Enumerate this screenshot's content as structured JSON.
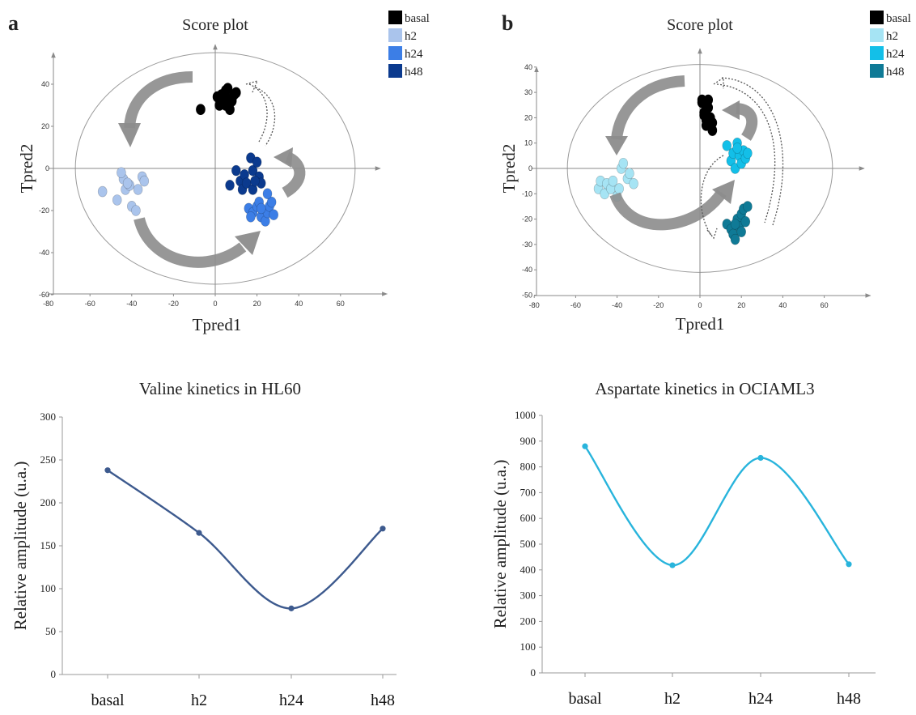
{
  "panel_labels": [
    "a",
    "b"
  ],
  "colors": {
    "basal": "#000000",
    "a_h2": "#aac4ec",
    "a_h24": "#3c7ee6",
    "a_h48": "#0b3a8e",
    "b_h2": "#a6e4f4",
    "b_h24": "#13bfe8",
    "b_h48": "#0f7a96",
    "line_a": "#3d5a8e",
    "line_b": "#28b4dc",
    "arrow": "#8c8c8c"
  },
  "chart_data": [
    {
      "type": "scatter",
      "panel": "a",
      "title": "Score plot",
      "xlabel": "Tpred1",
      "ylabel": "Tpred2",
      "xlim": [
        -80,
        80
      ],
      "ylim": [
        -60,
        55
      ],
      "xticks": [
        -80,
        -60,
        -40,
        -20,
        0,
        20,
        40,
        60
      ],
      "yticks": [
        -60,
        -40,
        -20,
        0,
        20,
        40
      ],
      "ellipse": {
        "cx": 0,
        "cy": 0,
        "rx": 67,
        "ry": 55
      },
      "legend": [
        "basal",
        "h2",
        "h24",
        "h48"
      ],
      "series": [
        {
          "name": "basal",
          "color": "#000000",
          "points": [
            [
              -7,
              28
            ],
            [
              2,
              30
            ],
            [
              3,
              35
            ],
            [
              5,
              37
            ],
            [
              6,
              33
            ],
            [
              7,
              28
            ],
            [
              8,
              32
            ],
            [
              9,
              35
            ],
            [
              4,
              32
            ],
            [
              1,
              34
            ],
            [
              10,
              36
            ],
            [
              6,
              38
            ],
            [
              3,
              31
            ],
            [
              5,
              30
            ]
          ]
        },
        {
          "name": "h2",
          "color": "#aac4ec",
          "points": [
            [
              -54,
              -11
            ],
            [
              -47,
              -15
            ],
            [
              -44,
              -5
            ],
            [
              -43,
              -10
            ],
            [
              -41,
              -8
            ],
            [
              -40,
              -18
            ],
            [
              -38,
              -20
            ],
            [
              -37,
              -10
            ],
            [
              -35,
              -4
            ],
            [
              -34,
              -6
            ],
            [
              -45,
              -2
            ],
            [
              -42,
              -7
            ]
          ]
        },
        {
          "name": "h24",
          "color": "#3c7ee6",
          "points": [
            [
              16,
              -19
            ],
            [
              18,
              -21
            ],
            [
              20,
              -18
            ],
            [
              21,
              -16
            ],
            [
              22,
              -23
            ],
            [
              24,
              -25
            ],
            [
              25,
              -21
            ],
            [
              26,
              -18
            ],
            [
              27,
              -16
            ],
            [
              28,
              -22
            ],
            [
              22,
              -19
            ],
            [
              17,
              -23
            ],
            [
              25,
              -12
            ]
          ]
        },
        {
          "name": "h48",
          "color": "#0b3a8e",
          "points": [
            [
              7,
              -8
            ],
            [
              10,
              -1
            ],
            [
              12,
              -6
            ],
            [
              13,
              -10
            ],
            [
              14,
              -3
            ],
            [
              15,
              -7
            ],
            [
              17,
              5
            ],
            [
              18,
              -1
            ],
            [
              18,
              -10
            ],
            [
              20,
              3
            ],
            [
              21,
              -4
            ],
            [
              22,
              -7
            ],
            [
              19,
              -6
            ]
          ]
        }
      ]
    },
    {
      "type": "scatter",
      "panel": "b",
      "title": "Score plot",
      "xlabel": "Tpred1",
      "ylabel": "Tpred2",
      "xlim": [
        -80,
        80
      ],
      "ylim": [
        -50,
        40
      ],
      "xticks": [
        -80,
        -60,
        -40,
        -20,
        0,
        20,
        40,
        60
      ],
      "yticks": [
        -50,
        -40,
        -30,
        -20,
        -10,
        0,
        10,
        20,
        30,
        40
      ],
      "ellipse": {
        "cx": 0,
        "cy": 0,
        "rx": 64,
        "ry": 41
      },
      "legend": [
        "basal",
        "h2",
        "h24",
        "h48"
      ],
      "series": [
        {
          "name": "basal",
          "color": "#000000",
          "points": [
            [
              1,
              26
            ],
            [
              2,
              22
            ],
            [
              3,
              17
            ],
            [
              4,
              24
            ],
            [
              5,
              20
            ],
            [
              6,
              15
            ],
            [
              3,
              19
            ],
            [
              6,
              18
            ],
            [
              1,
              27
            ],
            [
              4,
              27
            ],
            [
              2,
              21
            ]
          ]
        },
        {
          "name": "h2",
          "color": "#a6e4f4",
          "points": [
            [
              -49,
              -8
            ],
            [
              -48,
              -5
            ],
            [
              -46,
              -10
            ],
            [
              -45,
              -6
            ],
            [
              -43,
              -8
            ],
            [
              -42,
              -5
            ],
            [
              -40,
              -11
            ],
            [
              -38,
              0
            ],
            [
              -37,
              2
            ],
            [
              -35,
              -4
            ],
            [
              -34,
              -2
            ],
            [
              -32,
              -6
            ],
            [
              -39,
              -8
            ]
          ]
        },
        {
          "name": "h24",
          "color": "#13bfe8",
          "points": [
            [
              13,
              9
            ],
            [
              15,
              3
            ],
            [
              16,
              6
            ],
            [
              17,
              0
            ],
            [
              18,
              10
            ],
            [
              19,
              5
            ],
            [
              20,
              2
            ],
            [
              21,
              7
            ],
            [
              22,
              4
            ],
            [
              23,
              6
            ],
            [
              18,
              8
            ]
          ]
        },
        {
          "name": "h48",
          "color": "#0f7a96",
          "points": [
            [
              13,
              -22
            ],
            [
              15,
              -24
            ],
            [
              16,
              -26
            ],
            [
              17,
              -28
            ],
            [
              18,
              -20
            ],
            [
              19,
              -23
            ],
            [
              20,
              -18
            ],
            [
              21,
              -16
            ],
            [
              22,
              -21
            ],
            [
              23,
              -15
            ],
            [
              20,
              -25
            ],
            [
              17,
              -22
            ]
          ]
        }
      ]
    },
    {
      "type": "line",
      "panel": "a",
      "title": "Valine kinetics in HL60",
      "xlabel": "",
      "ylabel": "Relative amplitude (u.a.)",
      "categories": [
        "basal",
        "h2",
        "h24",
        "h48"
      ],
      "values": [
        238,
        165,
        77,
        170
      ],
      "ylim": [
        0,
        300
      ],
      "yticks": [
        0,
        50,
        100,
        150,
        200,
        250,
        300
      ]
    },
    {
      "type": "line",
      "panel": "b",
      "title": "Aspartate kinetics in OCIAML3",
      "xlabel": "",
      "ylabel": "Relative amplitude (u.a.)",
      "categories": [
        "basal",
        "h2",
        "h24",
        "h48"
      ],
      "values": [
        880,
        418,
        835,
        422
      ],
      "ylim": [
        0,
        1000
      ],
      "yticks": [
        0,
        100,
        200,
        300,
        400,
        500,
        600,
        700,
        800,
        900,
        1000
      ]
    }
  ]
}
